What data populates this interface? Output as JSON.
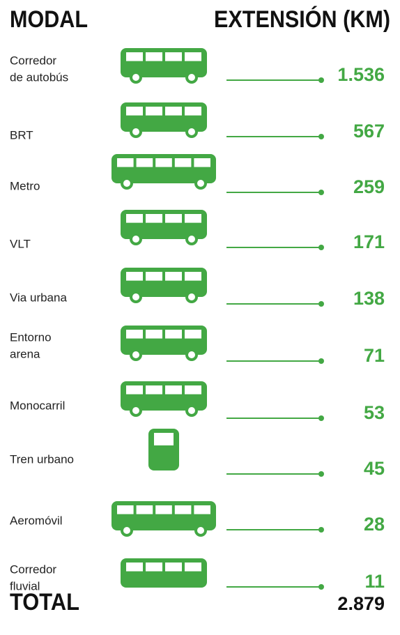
{
  "header": {
    "left": "MODAL",
    "right": "EXTENSIÓN (KM)"
  },
  "rows": [
    {
      "label": [
        "Corredor",
        "de autobús"
      ],
      "value": "1.536"
    },
    {
      "label": [
        "BRT"
      ],
      "value": "567"
    },
    {
      "label": [
        "Metro"
      ],
      "value": "259"
    },
    {
      "label": [
        "VLT"
      ],
      "value": "171"
    },
    {
      "label": [
        "Via urbana"
      ],
      "value": "138"
    },
    {
      "label": [
        "Entorno",
        "arena"
      ],
      "value": "71"
    },
    {
      "label": [
        "Monocarril"
      ],
      "value": "53"
    },
    {
      "label": [
        "Tren urbano"
      ],
      "value": "45"
    },
    {
      "label": [
        "Aeromóvil"
      ],
      "value": "28"
    },
    {
      "label": [
        "Corredor",
        "fluvial"
      ],
      "value": "11"
    }
  ],
  "total": {
    "label": "TOTAL",
    "value": "2.879"
  }
}
